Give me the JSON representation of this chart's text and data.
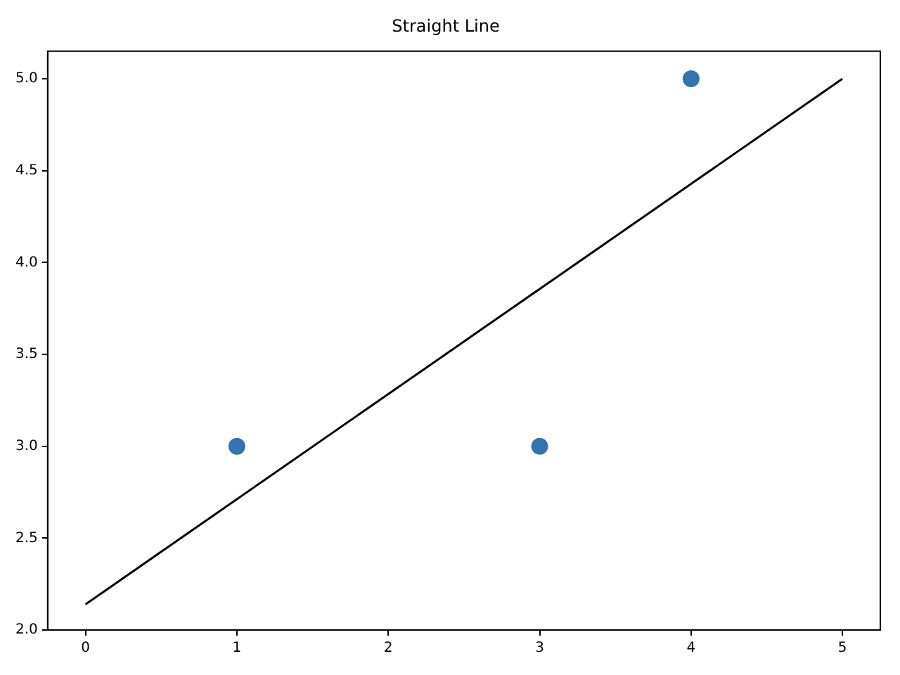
{
  "chart_data": {
    "type": "scatter",
    "title": "Straight Line",
    "xlim": [
      -0.25,
      5.25
    ],
    "xticks": [
      0,
      1,
      2,
      3,
      4,
      5
    ],
    "ylim": [
      2.0,
      5.15
    ],
    "yticks": [
      {
        "value": 2.0,
        "label": "2.0"
      },
      {
        "value": 2.5,
        "label": "2.5"
      },
      {
        "value": 3.0,
        "label": "3.0"
      },
      {
        "value": 3.5,
        "label": "3.5"
      },
      {
        "value": 4.0,
        "label": "4.0"
      },
      {
        "value": 4.5,
        "label": "4.5"
      },
      {
        "value": 5.0,
        "label": "5.0"
      }
    ],
    "series": [
      {
        "type": "scatter",
        "color": "#3274b0",
        "x": [
          1,
          3,
          4
        ],
        "values": [
          3,
          3,
          5
        ],
        "marker": "circle"
      },
      {
        "type": "line",
        "color": "#000000",
        "x": [
          0,
          5
        ],
        "values": [
          2.14,
          5.0
        ],
        "marker": "none",
        "line_style": "solid"
      }
    ],
    "grid": false,
    "legend": false
  }
}
